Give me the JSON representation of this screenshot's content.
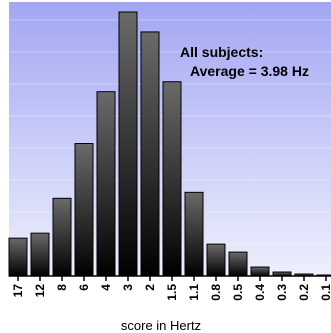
{
  "chart_data": {
    "type": "bar",
    "categories": [
      "17",
      "12",
      "8",
      "6",
      "4",
      "3",
      "2",
      "1.5",
      "1.1",
      "0.8",
      "0.5",
      "0.4",
      "0.3",
      "0.2",
      "0.1"
    ],
    "values": [
      38,
      43,
      78,
      133,
      185,
      265,
      245,
      195,
      84,
      32,
      24,
      9,
      4,
      2,
      1
    ],
    "ylim": [
      0,
      265
    ],
    "title": "",
    "xlabel": "score in Hertz",
    "ylabel": "",
    "grid": "horizontal",
    "legend": "none",
    "annotation": {
      "line1": "All subjects:",
      "line2": "Average = 3.98 Hz"
    },
    "colors": {
      "bar_top": "#6a6a6a",
      "bar_bottom": "#000000",
      "background_top": "#a2a6f2",
      "background_bottom": "#eef0fd"
    }
  }
}
